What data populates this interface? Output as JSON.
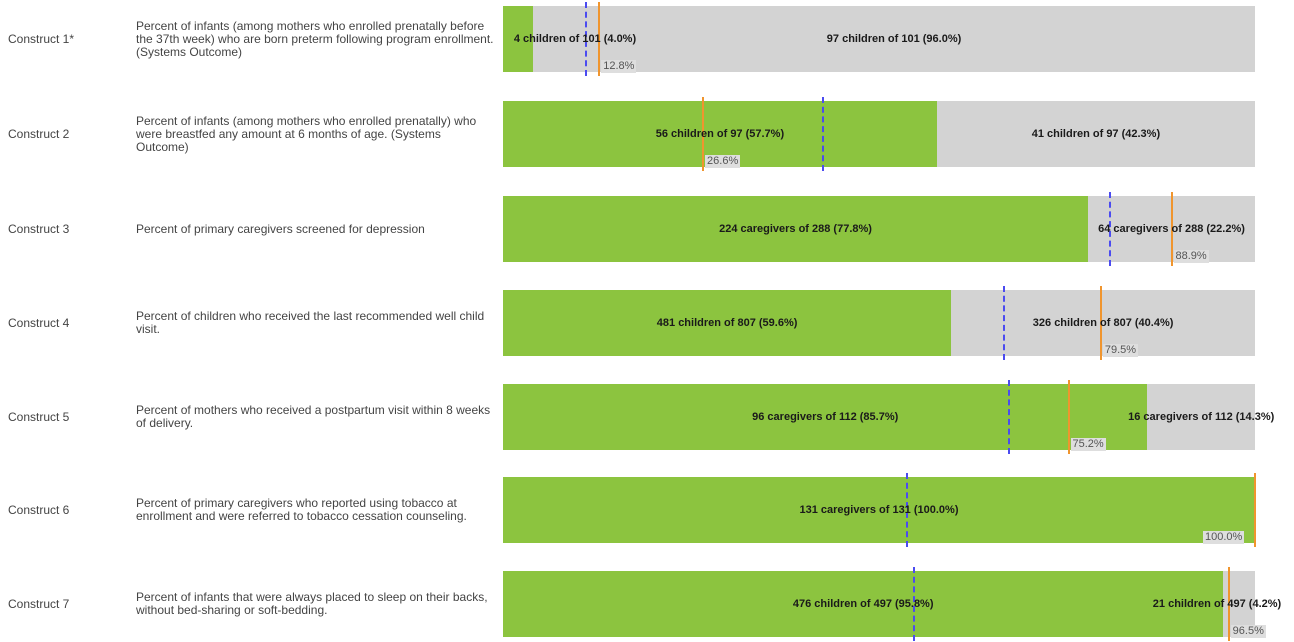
{
  "colors": {
    "met": "#8cc43f",
    "not_met": "#d3d3d3",
    "blue_line": "#4b4bf0",
    "orange_line": "#f0952e"
  },
  "chart_data": {
    "type": "bar",
    "orientation": "horizontal",
    "stacked": true,
    "xlim": [
      0,
      100
    ],
    "grid": false,
    "categories": [
      "Construct 1*",
      "Construct 2",
      "Construct 3",
      "Construct 4",
      "Construct 5",
      "Construct 6",
      "Construct 7"
    ],
    "rows": [
      {
        "construct": "Construct 1*",
        "description": "Percent of infants (among mothers who enrolled prenatally before the 37th week) who are born preterm following program enrollment. (Systems Outcome)",
        "met_pct": 4.0,
        "met_label": "4 children of 101 (4.0%)",
        "not_met_pct": 96.0,
        "not_met_label": "97 children of 101 (96.0%)",
        "blue_marker": 11.0,
        "orange_marker": 12.8,
        "orange_label": "12.8%"
      },
      {
        "construct": "Construct 2",
        "description": "Percent of infants (among mothers who enrolled prenatally) who were breastfed any amount at 6 months of age. (Systems Outcome)",
        "met_pct": 57.7,
        "met_label": "56 children of 97 (57.7%)",
        "not_met_pct": 42.3,
        "not_met_label": "41 children of 97 (42.3%)",
        "blue_marker": 42.5,
        "orange_marker": 26.6,
        "orange_label": "26.6%"
      },
      {
        "construct": "Construct 3",
        "description": "Percent of primary caregivers screened for depression",
        "met_pct": 77.8,
        "met_label": "224 caregivers of 288 (77.8%)",
        "not_met_pct": 22.2,
        "not_met_label": "64 caregivers of 288 (22.2%)",
        "blue_marker": 80.7,
        "orange_marker": 88.9,
        "orange_label": "88.9%"
      },
      {
        "construct": "Construct 4",
        "description": "Percent of children who received the last recommended well child visit.",
        "met_pct": 59.6,
        "met_label": "481 children of 807 (59.6%)",
        "not_met_pct": 40.4,
        "not_met_label": "326 children of 807 (40.4%)",
        "blue_marker": 66.6,
        "orange_marker": 79.5,
        "orange_label": "79.5%"
      },
      {
        "construct": "Construct 5",
        "description": "Percent of mothers who received a postpartum visit within 8 weeks of delivery.",
        "met_pct": 85.7,
        "met_label": "96 caregivers of 112 (85.7%)",
        "not_met_pct": 14.3,
        "not_met_label": "16 caregivers of 112 (14.3%)",
        "blue_marker": 67.3,
        "orange_marker": 75.2,
        "orange_label": "75.2%"
      },
      {
        "construct": "Construct 6",
        "description": "Percent of primary caregivers who reported using tobacco at enrollment and were referred to tobacco cessation counseling.",
        "met_pct": 100.0,
        "met_label": "131 caregivers of 131 (100.0%)",
        "not_met_pct": 0.0,
        "not_met_label": "",
        "blue_marker": 53.7,
        "orange_marker": 100.0,
        "orange_label": "100.0%"
      },
      {
        "construct": "Construct 7",
        "description": "Percent of infants that were always placed to sleep on their backs, without bed-sharing or soft-bedding.",
        "met_pct": 95.8,
        "met_label": "476 children of 497 (95.8%)",
        "not_met_pct": 4.2,
        "not_met_label": "21 children of 497 (4.2%)",
        "blue_marker": 54.6,
        "orange_marker": 96.5,
        "orange_label": "96.5%"
      }
    ]
  }
}
